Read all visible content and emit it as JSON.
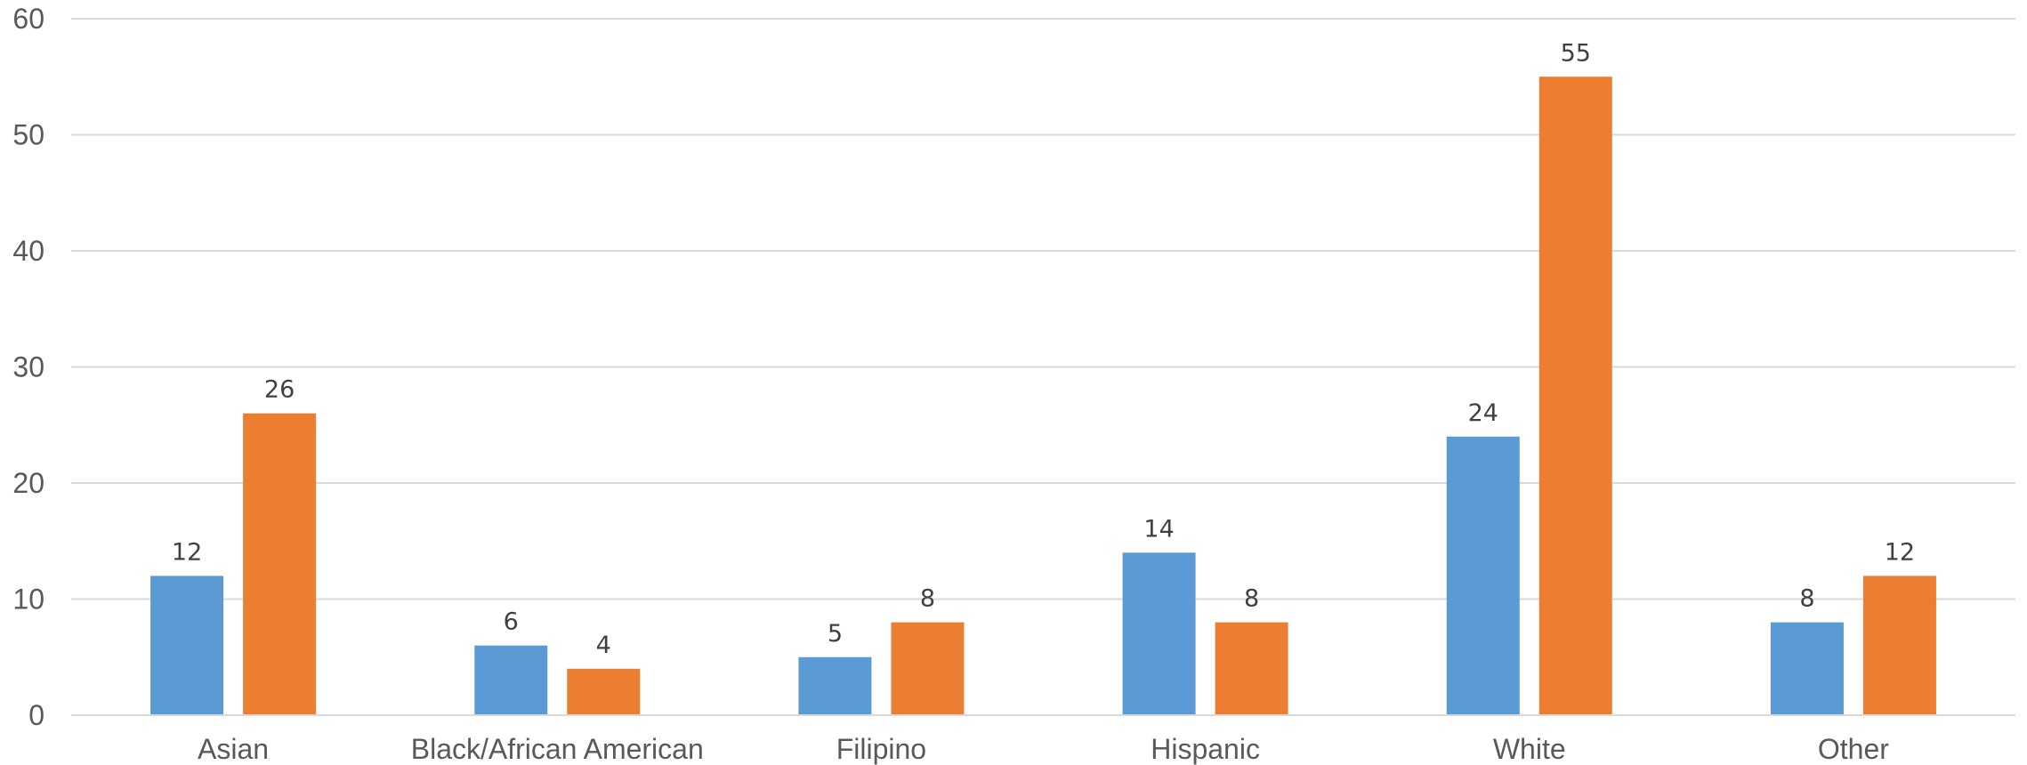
{
  "chart_data": {
    "type": "bar",
    "title": "",
    "xlabel": "",
    "ylabel": "",
    "categories": [
      "Asian",
      "Black/African American",
      "Filipino",
      "Hispanic",
      "White",
      "Other"
    ],
    "series": [
      {
        "values": [
          12,
          6,
          5,
          14,
          24,
          8
        ],
        "color": "#5b9bd5"
      },
      {
        "values": [
          26,
          4,
          8,
          8,
          55,
          12
        ],
        "color": "#ed7d31"
      }
    ],
    "ylim": [
      0,
      60
    ],
    "yticks": [
      0,
      10,
      20,
      30,
      40,
      50,
      60
    ],
    "grid": true,
    "data_labels": true,
    "legend": "none"
  }
}
